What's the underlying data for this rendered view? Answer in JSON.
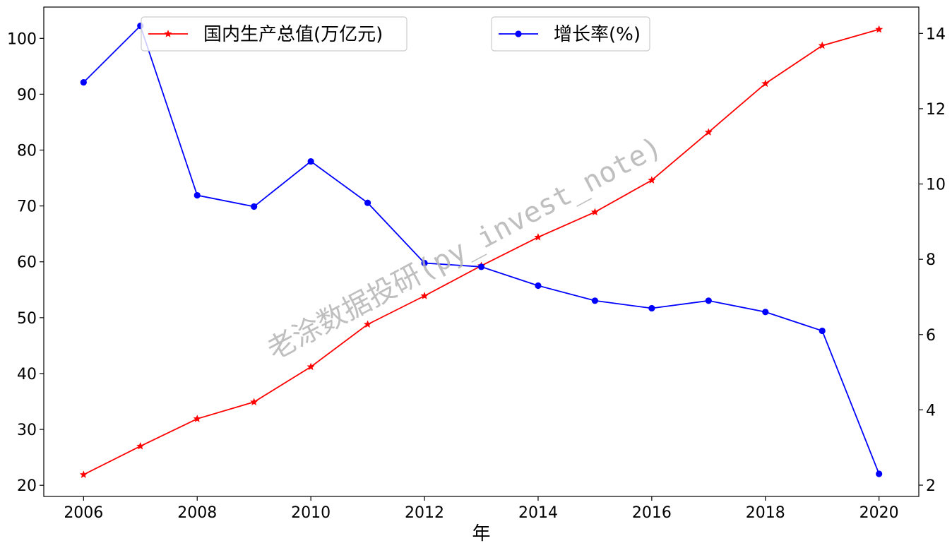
{
  "chart_data": {
    "type": "line",
    "x": [
      2006,
      2007,
      2008,
      2009,
      2010,
      2011,
      2012,
      2013,
      2014,
      2015,
      2016,
      2017,
      2018,
      2019,
      2020
    ],
    "series": [
      {
        "name": "国内生产总值(万亿元)",
        "axis": "left",
        "color": "#ff0000",
        "marker": "star",
        "values": [
          21.9,
          27.0,
          31.9,
          34.9,
          41.2,
          48.8,
          53.9,
          59.3,
          64.4,
          68.9,
          74.6,
          83.2,
          91.9,
          98.7,
          101.6
        ]
      },
      {
        "name": "增长率(%)",
        "axis": "right",
        "color": "#0000ff",
        "marker": "circle",
        "values": [
          12.7,
          14.2,
          9.7,
          9.4,
          10.6,
          9.5,
          7.9,
          7.8,
          7.3,
          6.9,
          6.7,
          6.9,
          6.6,
          6.1,
          2.3
        ]
      }
    ],
    "xlabel": "年",
    "ylabel_left": "",
    "ylabel_right": "",
    "xlim": [
      2005.3,
      2020.7
    ],
    "ylim_left": [
      18,
      105.6
    ],
    "ylim_right": [
      1.7,
      14.7
    ],
    "xticks": [
      "2006",
      "2008",
      "2010",
      "2012",
      "2014",
      "2016",
      "2018",
      "2020"
    ],
    "yticks_left": [
      "20",
      "30",
      "40",
      "50",
      "60",
      "70",
      "80",
      "90",
      "100"
    ],
    "yticks_right": [
      "2",
      "4",
      "6",
      "8",
      "10",
      "12",
      "14"
    ],
    "grid": false,
    "legend_left_position": "top-left",
    "legend_right_position": "top-center",
    "watermark": "老涂数据投研(py_invest_note)"
  }
}
